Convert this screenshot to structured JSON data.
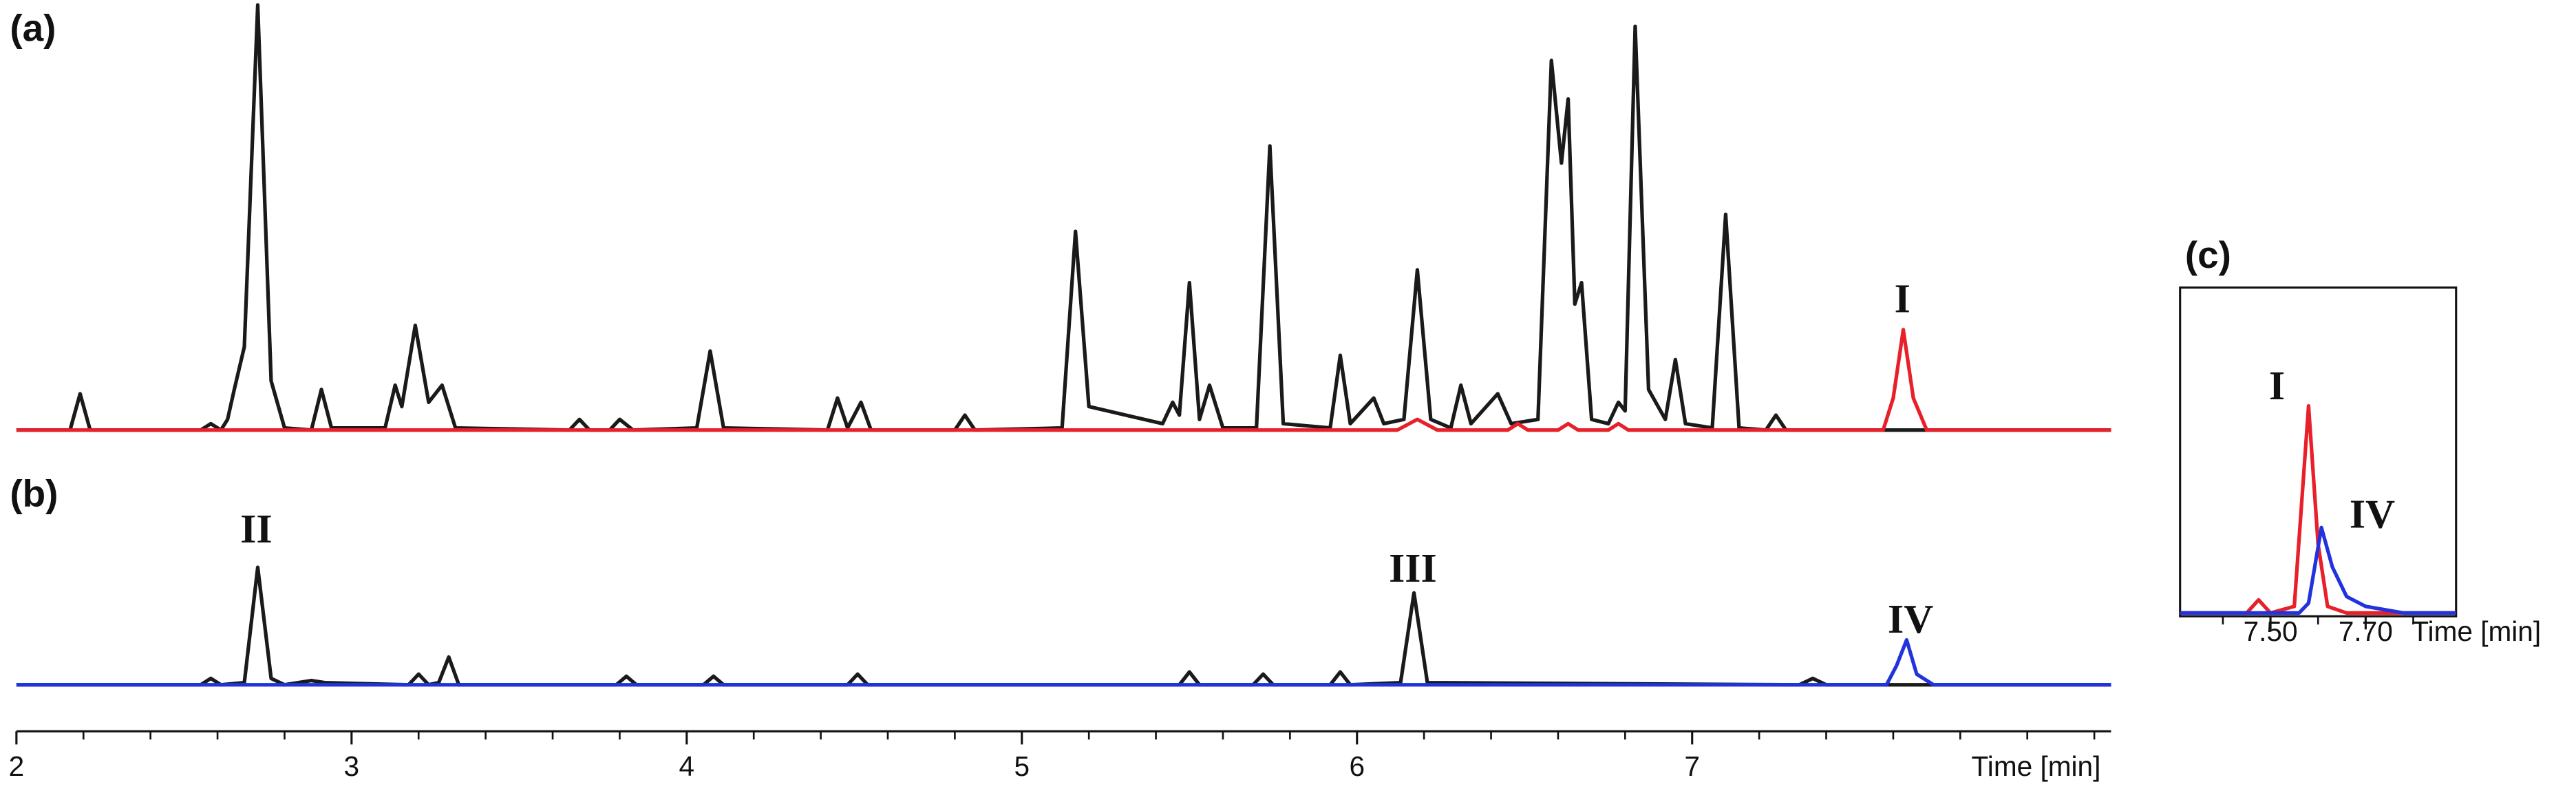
{
  "chart_data": [
    {
      "type": "line",
      "label": "(a)",
      "xlim": [
        2,
        8.25
      ],
      "ylim": [
        0,
        100
      ],
      "annotations": [
        "I"
      ],
      "series": [
        {
          "color": "#1a1a1a",
          "x": [
            2.0,
            2.16,
            2.19,
            2.22,
            2.55,
            2.58,
            2.61,
            2.63,
            2.65,
            2.68,
            2.72,
            2.76,
            2.8,
            2.88,
            2.91,
            2.94,
            3.1,
            3.13,
            3.15,
            3.19,
            3.23,
            3.27,
            3.31,
            3.65,
            3.68,
            3.71,
            3.77,
            3.8,
            3.84,
            4.03,
            4.07,
            4.11,
            4.42,
            4.45,
            4.48,
            4.52,
            4.55,
            4.8,
            4.83,
            4.86,
            5.12,
            5.16,
            5.2,
            5.42,
            5.45,
            5.47,
            5.5,
            5.53,
            5.56,
            5.6,
            5.7,
            5.74,
            5.78,
            5.92,
            5.95,
            5.98,
            6.05,
            6.08,
            6.14,
            6.18,
            6.22,
            6.28,
            6.31,
            6.34,
            6.42,
            6.46,
            6.54,
            6.58,
            6.61,
            6.63,
            6.65,
            6.67,
            6.7,
            6.75,
            6.78,
            6.8,
            6.83,
            6.87,
            6.92,
            6.95,
            6.98,
            7.06,
            7.1,
            7.14,
            7.22,
            7.25,
            7.28,
            8.25
          ],
          "values": [
            0.5,
            0.5,
            9,
            0.5,
            0.5,
            2,
            0.5,
            3,
            10,
            20,
            100,
            12,
            1,
            0.5,
            10,
            1,
            1,
            11,
            6,
            25,
            7,
            11,
            1,
            0.5,
            3,
            0.5,
            0.5,
            3,
            0.5,
            1,
            19,
            1,
            0.5,
            8,
            1,
            7,
            0.5,
            0.5,
            4,
            0.5,
            1,
            47,
            6,
            2,
            7,
            4,
            35,
            3,
            11,
            1,
            1,
            67,
            2,
            1,
            18,
            2,
            8,
            2,
            3,
            38,
            3,
            1,
            11,
            2,
            9,
            2,
            3,
            87,
            63,
            78,
            30,
            35,
            3,
            2,
            7,
            5,
            95,
            10,
            3,
            17,
            2,
            1,
            51,
            1,
            0.5,
            4,
            0.5,
            0.5
          ]
        },
        {
          "color": "#e8202a",
          "x": [
            2.0,
            6.12,
            6.18,
            6.24,
            6.45,
            6.48,
            6.51,
            6.6,
            6.63,
            6.66,
            6.75,
            6.78,
            6.81,
            7.57,
            7.6,
            7.63,
            7.66,
            7.7,
            8.25
          ],
          "values": [
            0.5,
            0.5,
            3,
            0.5,
            0.5,
            2,
            0.5,
            0.5,
            2,
            0.5,
            0.5,
            2,
            0.5,
            0.5,
            8,
            24,
            8,
            0.5,
            0.5
          ]
        }
      ]
    },
    {
      "type": "line",
      "label": "(b)",
      "xlim": [
        2,
        8.25
      ],
      "ylim": [
        0,
        100
      ],
      "xticks": [
        2,
        3,
        4,
        5,
        6,
        7
      ],
      "xminorticks": [
        2.2,
        2.4,
        2.6,
        2.8,
        3.2,
        3.4,
        3.6,
        3.8,
        4.2,
        4.4,
        4.6,
        4.8,
        5.2,
        5.4,
        5.6,
        5.8,
        6.2,
        6.4,
        6.6,
        6.8,
        7.2,
        7.4,
        7.6,
        7.8,
        8.0,
        8.2
      ],
      "xlabel": "Time [min]",
      "annotations": [
        "II",
        "III",
        "IV"
      ],
      "series": [
        {
          "color": "#1a1a1a",
          "x": [
            2.0,
            2.55,
            2.58,
            2.61,
            2.68,
            2.72,
            2.76,
            2.8,
            2.88,
            2.92,
            3.17,
            3.2,
            3.23,
            3.26,
            3.29,
            3.32,
            3.79,
            3.82,
            3.85,
            4.05,
            4.08,
            4.11,
            4.48,
            4.51,
            4.54,
            5.47,
            5.5,
            5.53,
            5.69,
            5.72,
            5.75,
            5.92,
            5.95,
            5.98,
            6.13,
            6.17,
            6.21,
            7.32,
            7.36,
            7.4,
            8.25
          ],
          "values": [
            0.5,
            0.5,
            2,
            0.5,
            1,
            28,
            2,
            0.5,
            1.5,
            1,
            0.5,
            3,
            0.5,
            1,
            7,
            0.5,
            0.5,
            2.5,
            0.5,
            0.5,
            2.5,
            0.5,
            0.5,
            3,
            0.5,
            0.5,
            3.5,
            0.5,
            0.5,
            3,
            0.5,
            0.5,
            3.5,
            0.5,
            1,
            22,
            1,
            0.5,
            2,
            0.5,
            0.5
          ]
        },
        {
          "color": "#2233dd",
          "x": [
            2.0,
            7.58,
            7.61,
            7.64,
            7.67,
            7.72,
            8.25
          ],
          "values": [
            0.5,
            0.5,
            5,
            11,
            3,
            0.5,
            0.5
          ]
        }
      ]
    },
    {
      "type": "line",
      "label": "(c)",
      "xlim": [
        7.31,
        7.89
      ],
      "ylim": [
        0,
        100
      ],
      "xticks": [
        {
          "value": 7.5,
          "label": "7.50"
        },
        {
          "value": 7.7,
          "label": "7.70"
        }
      ],
      "xminorticks": [
        7.4,
        7.6,
        7.8
      ],
      "xlabel": "Time [min]",
      "annotations": [
        "I",
        "IV"
      ],
      "series": [
        {
          "color": "#e8202a",
          "x": [
            7.31,
            7.45,
            7.475,
            7.5,
            7.55,
            7.58,
            7.6,
            7.62,
            7.66,
            7.89
          ],
          "values": [
            1,
            1,
            5,
            1,
            3,
            64,
            22,
            3,
            1,
            1
          ]
        },
        {
          "color": "#2233dd",
          "x": [
            7.31,
            7.56,
            7.58,
            7.607,
            7.63,
            7.66,
            7.7,
            7.78,
            7.89
          ],
          "values": [
            1,
            1,
            4,
            27,
            15,
            6,
            3,
            1,
            1
          ]
        }
      ]
    }
  ]
}
